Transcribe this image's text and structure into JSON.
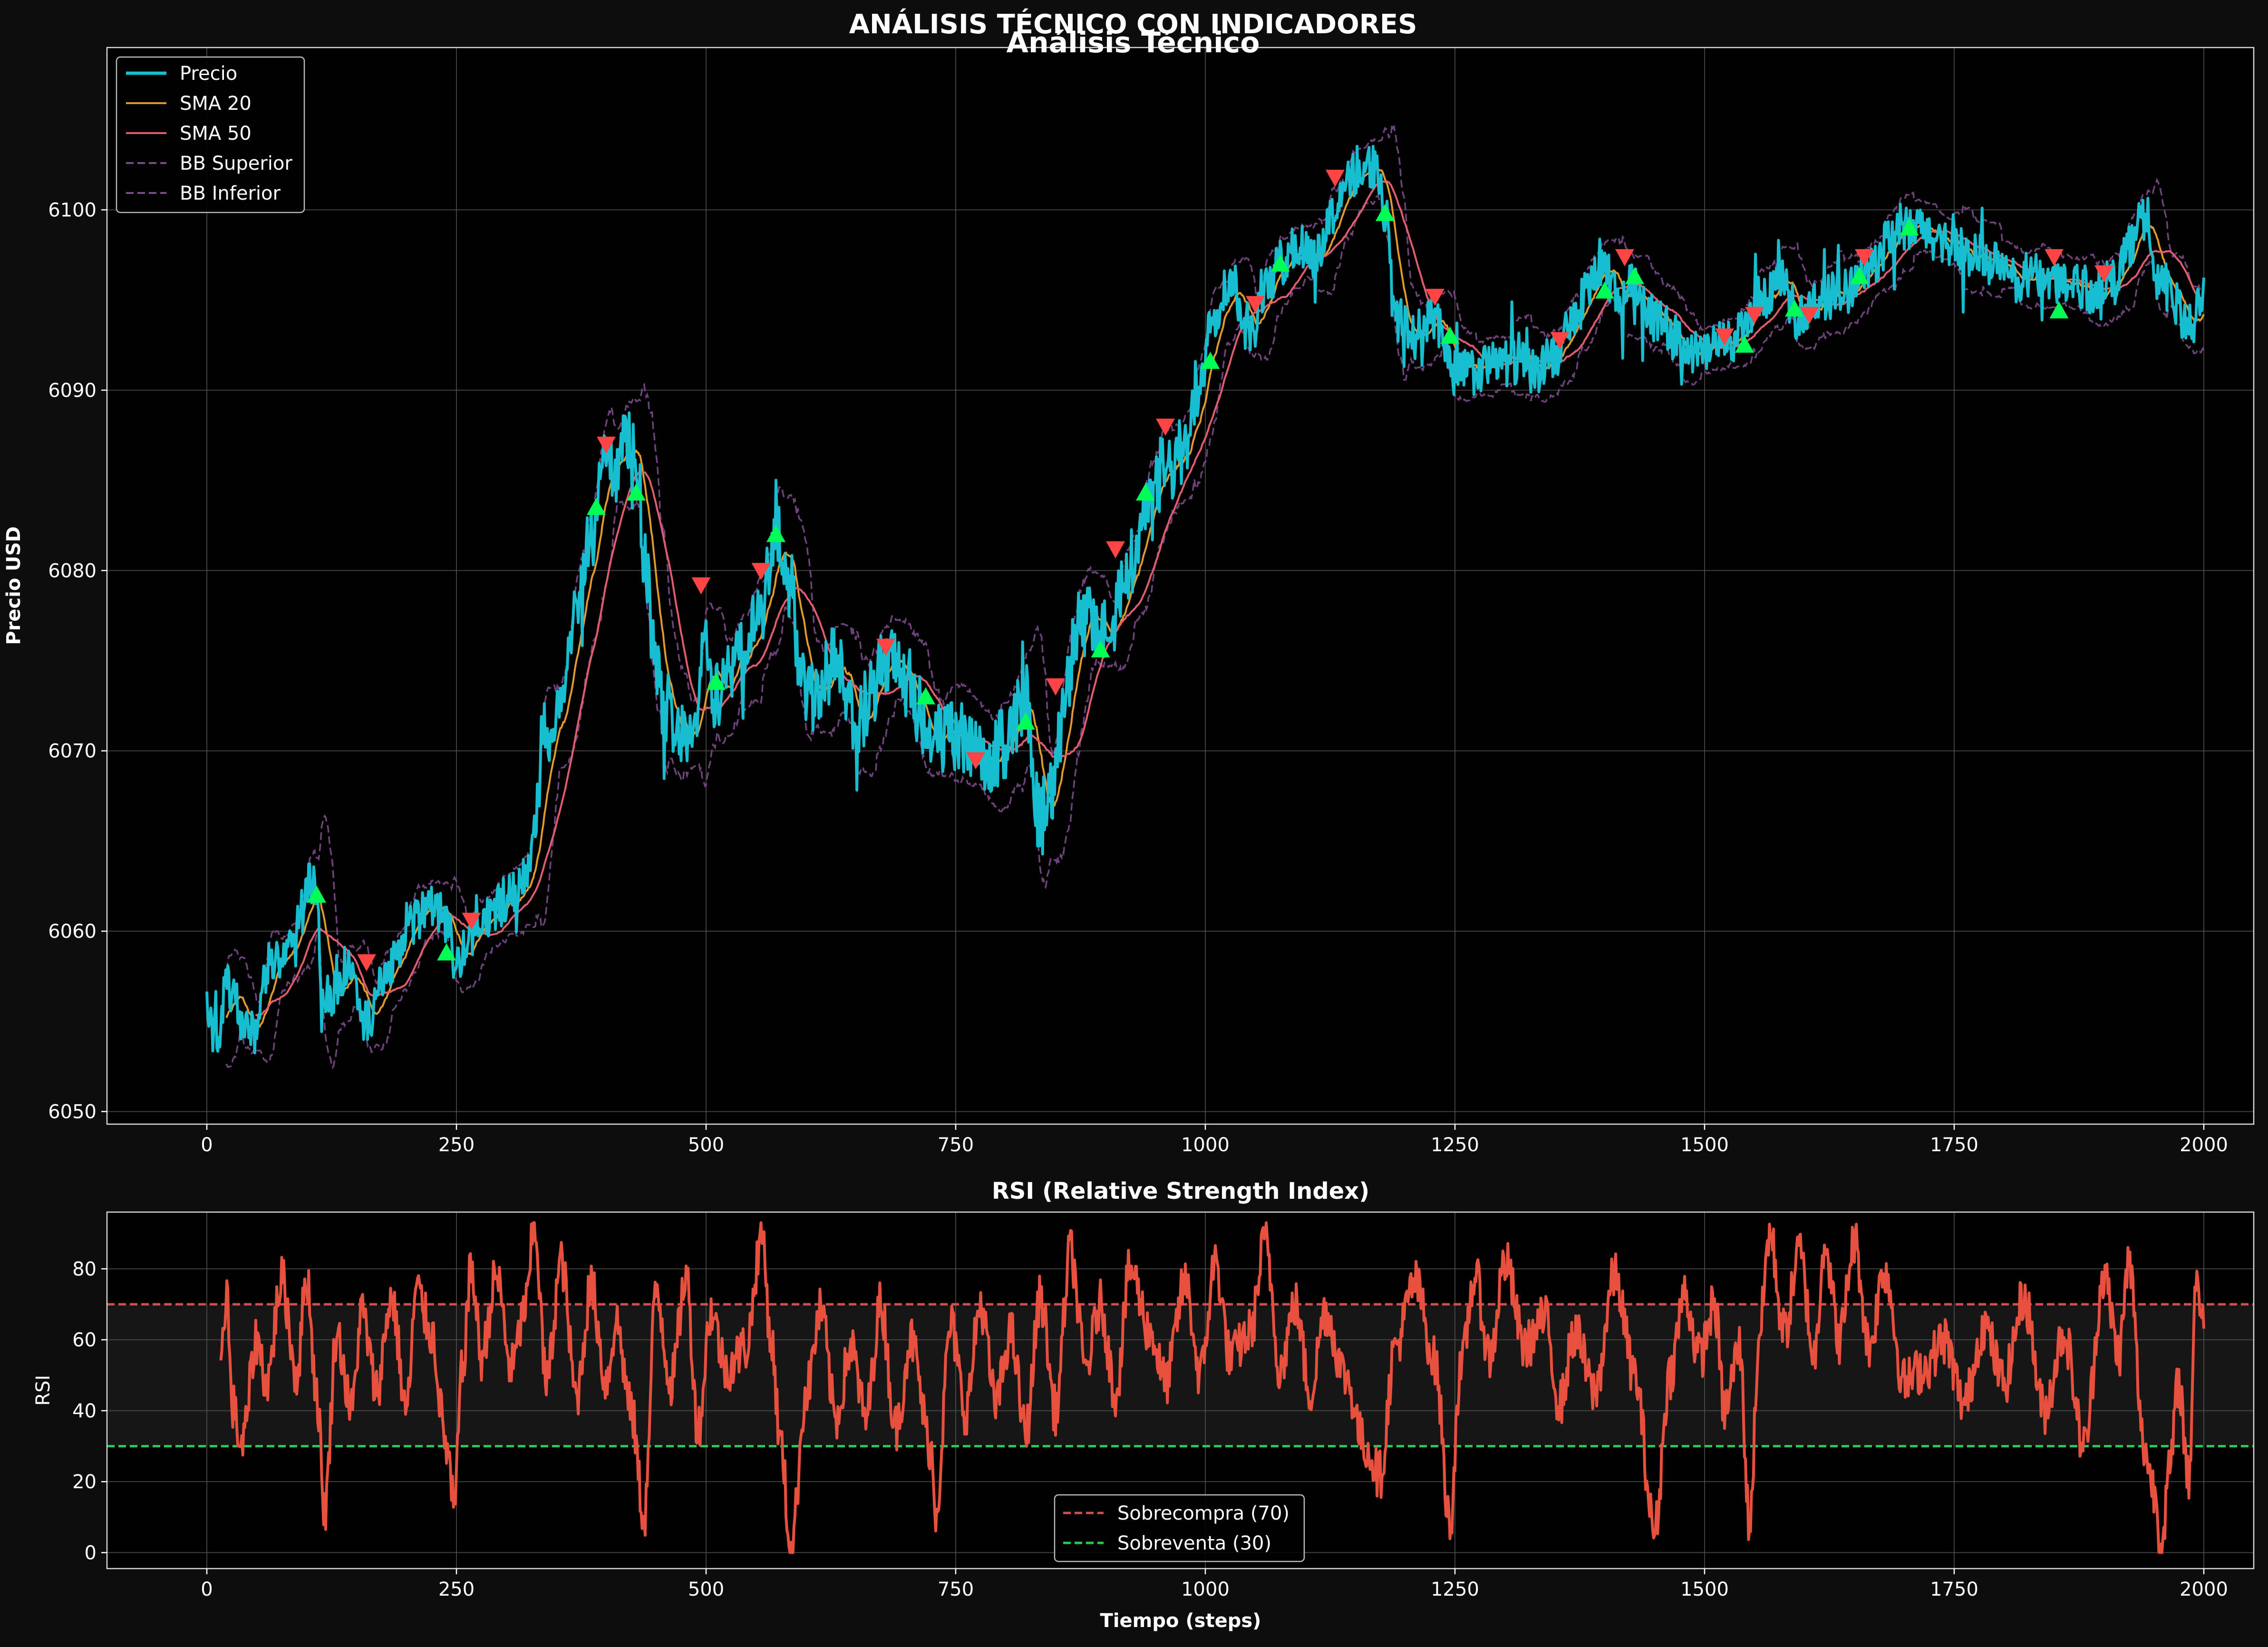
{
  "suptitle": "ANÁLISIS TÉCNICO CON INDICADORES",
  "chart_data": [
    {
      "type": "line",
      "title": "Análisis Técnico",
      "xlabel": "",
      "ylabel": "Precio USD",
      "xlim": [
        -100,
        2050
      ],
      "ylim": [
        6049.3,
        6109.0
      ],
      "xticks": [
        0,
        250,
        500,
        750,
        1000,
        1250,
        1500,
        1750,
        2000
      ],
      "xtick_labels": [
        "0",
        "250",
        "500",
        "750",
        "1000",
        "1250",
        "1500",
        "1750",
        "2000"
      ],
      "yticks": [
        6050,
        6060,
        6070,
        6080,
        6090,
        6100
      ],
      "ytick_labels": [
        "6050",
        "6060",
        "6070",
        "6080",
        "6090",
        "6100"
      ],
      "grid": true,
      "legend_position": "top-left",
      "price_anchors": [
        [
          0,
          6055.5
        ],
        [
          10,
          6054
        ],
        [
          20,
          6057
        ],
        [
          35,
          6055
        ],
        [
          50,
          6054
        ],
        [
          60,
          6058
        ],
        [
          80,
          6059
        ],
        [
          95,
          6061
        ],
        [
          103,
          6063
        ],
        [
          110,
          6062
        ],
        [
          115,
          6057
        ],
        [
          125,
          6056.5
        ],
        [
          140,
          6058
        ],
        [
          160,
          6055
        ],
        [
          180,
          6057.5
        ],
        [
          200,
          6060
        ],
        [
          225,
          6061.5
        ],
        [
          240,
          6060.5
        ],
        [
          250,
          6058
        ],
        [
          265,
          6060
        ],
        [
          285,
          6061
        ],
        [
          305,
          6062
        ],
        [
          320,
          6063
        ],
        [
          340,
          6070
        ],
        [
          355,
          6073
        ],
        [
          370,
          6078
        ],
        [
          385,
          6082
        ],
        [
          400,
          6086
        ],
        [
          410,
          6085.5
        ],
        [
          420,
          6087
        ],
        [
          430,
          6086
        ],
        [
          440,
          6080
        ],
        [
          450,
          6074
        ],
        [
          460,
          6072.5
        ],
        [
          475,
          6071
        ],
        [
          490,
          6072
        ],
        [
          500,
          6076
        ],
        [
          510,
          6073
        ],
        [
          525,
          6075
        ],
        [
          540,
          6075.5
        ],
        [
          555,
          6078
        ],
        [
          570,
          6082.5
        ],
        [
          580,
          6079
        ],
        [
          595,
          6075
        ],
        [
          610,
          6073
        ],
        [
          630,
          6075
        ],
        [
          650,
          6071.5
        ],
        [
          665,
          6073
        ],
        [
          680,
          6075
        ],
        [
          700,
          6074
        ],
        [
          720,
          6071.5
        ],
        [
          735,
          6070.5
        ],
        [
          750,
          6071
        ],
        [
          765,
          6070
        ],
        [
          780,
          6069
        ],
        [
          800,
          6070.5
        ],
        [
          820,
          6073
        ],
        [
          835,
          6066
        ],
        [
          845,
          6068
        ],
        [
          860,
          6074
        ],
        [
          875,
          6077
        ],
        [
          890,
          6077.5
        ],
        [
          905,
          6076
        ],
        [
          920,
          6080
        ],
        [
          940,
          6083
        ],
        [
          960,
          6085.5
        ],
        [
          980,
          6086.5
        ],
        [
          995,
          6091
        ],
        [
          1005,
          6094
        ],
        [
          1025,
          6096
        ],
        [
          1045,
          6093
        ],
        [
          1060,
          6095.5
        ],
        [
          1075,
          6097
        ],
        [
          1090,
          6098
        ],
        [
          1110,
          6097.5
        ],
        [
          1130,
          6100
        ],
        [
          1150,
          6102
        ],
        [
          1170,
          6102.5
        ],
        [
          1180,
          6100
        ],
        [
          1190,
          6094
        ],
        [
          1210,
          6093
        ],
        [
          1230,
          6094
        ],
        [
          1250,
          6091
        ],
        [
          1270,
          6091
        ],
        [
          1290,
          6091.5
        ],
        [
          1310,
          6091.5
        ],
        [
          1330,
          6091
        ],
        [
          1350,
          6092
        ],
        [
          1370,
          6094
        ],
        [
          1385,
          6096
        ],
        [
          1400,
          6096.5
        ],
        [
          1415,
          6095
        ],
        [
          1430,
          6096
        ],
        [
          1450,
          6094
        ],
        [
          1470,
          6093
        ],
        [
          1495,
          6092
        ],
        [
          1515,
          6092.5
        ],
        [
          1535,
          6093
        ],
        [
          1555,
          6095
        ],
        [
          1575,
          6096
        ],
        [
          1595,
          6094
        ],
        [
          1615,
          6095
        ],
        [
          1640,
          6095.5
        ],
        [
          1665,
          6097
        ],
        [
          1690,
          6098.5
        ],
        [
          1710,
          6099
        ],
        [
          1730,
          6098.5
        ],
        [
          1750,
          6098
        ],
        [
          1770,
          6097.5
        ],
        [
          1790,
          6097
        ],
        [
          1810,
          6096
        ],
        [
          1830,
          6096.5
        ],
        [
          1850,
          6096
        ],
        [
          1870,
          6096
        ],
        [
          1890,
          6095.5
        ],
        [
          1910,
          6096
        ],
        [
          1925,
          6098
        ],
        [
          1940,
          6099.5
        ],
        [
          1955,
          6096
        ],
        [
          1970,
          6095
        ],
        [
          1985,
          6093.5
        ],
        [
          2000,
          6095
        ]
      ],
      "buy_signals": [
        [
          110,
          6062
        ],
        [
          240,
          6058.8
        ],
        [
          390,
          6083.5
        ],
        [
          430,
          6084.3
        ],
        [
          510,
          6073.8
        ],
        [
          570,
          6082
        ],
        [
          720,
          6073
        ],
        [
          820,
          6071.6
        ],
        [
          895,
          6075.6
        ],
        [
          940,
          6084.3
        ],
        [
          1005,
          6091.6
        ],
        [
          1075,
          6097
        ],
        [
          1180,
          6099.8
        ],
        [
          1245,
          6093
        ],
        [
          1400,
          6095.5
        ],
        [
          1430,
          6096.3
        ],
        [
          1540,
          6092.5
        ],
        [
          1590,
          6094.5
        ],
        [
          1655,
          6096.3
        ],
        [
          1705,
          6099
        ],
        [
          1855,
          6094.4
        ]
      ],
      "sell_signals": [
        [
          160,
          6058.3
        ],
        [
          265,
          6060.6
        ],
        [
          400,
          6087
        ],
        [
          495,
          6079.2
        ],
        [
          555,
          6080
        ],
        [
          680,
          6075.8
        ],
        [
          770,
          6069.5
        ],
        [
          850,
          6073.6
        ],
        [
          910,
          6081.2
        ],
        [
          960,
          6088
        ],
        [
          1050,
          6094.8
        ],
        [
          1130,
          6101.8
        ],
        [
          1230,
          6095.2
        ],
        [
          1355,
          6092.8
        ],
        [
          1420,
          6097.4
        ],
        [
          1520,
          6093
        ],
        [
          1550,
          6094.2
        ],
        [
          1605,
          6094.2
        ],
        [
          1660,
          6097.4
        ],
        [
          1850,
          6097.4
        ],
        [
          1900,
          6096.5
        ]
      ],
      "series": [
        {
          "name": "Precio",
          "color": "#17becf",
          "style": "solid"
        },
        {
          "name": "SMA 20",
          "color": "#e09a2a",
          "style": "solid"
        },
        {
          "name": "SMA 50",
          "color": "#e05c6e",
          "style": "solid"
        },
        {
          "name": "BB Superior",
          "color": "#7a4a8a",
          "style": "dashed"
        },
        {
          "name": "BB Inferior",
          "color": "#7a4a8a",
          "style": "dashed"
        }
      ],
      "signal_colors": {
        "buy": "#00ff55",
        "sell": "#ff4444"
      }
    },
    {
      "type": "line",
      "title": "RSI (Relative Strength Index)",
      "xlabel": "Tiempo (steps)",
      "ylabel": "RSI",
      "xlim": [
        -100,
        2050
      ],
      "ylim": [
        -4.5,
        96
      ],
      "xticks": [
        0,
        250,
        500,
        750,
        1000,
        1250,
        1500,
        1750,
        2000
      ],
      "xtick_labels": [
        "0",
        "250",
        "500",
        "750",
        "1000",
        "1250",
        "1500",
        "1750",
        "2000"
      ],
      "yticks": [
        0,
        20,
        40,
        60,
        80
      ],
      "ytick_labels": [
        "0",
        "20",
        "40",
        "60",
        "80"
      ],
      "grid": true,
      "legend_position": "bottom-center",
      "rsi_anchors": [
        [
          14,
          58
        ],
        [
          20,
          74
        ],
        [
          25,
          42
        ],
        [
          35,
          30
        ],
        [
          50,
          60
        ],
        [
          60,
          48
        ],
        [
          75,
          77
        ],
        [
          90,
          50
        ],
        [
          100,
          78
        ],
        [
          110,
          45
        ],
        [
          118,
          12
        ],
        [
          130,
          62
        ],
        [
          145,
          40
        ],
        [
          155,
          68
        ],
        [
          170,
          46
        ],
        [
          185,
          72
        ],
        [
          200,
          40
        ],
        [
          210,
          74
        ],
        [
          225,
          62
        ],
        [
          240,
          30
        ],
        [
          248,
          12
        ],
        [
          255,
          50
        ],
        [
          265,
          80
        ],
        [
          275,
          55
        ],
        [
          290,
          78
        ],
        [
          305,
          52
        ],
        [
          320,
          70
        ],
        [
          328,
          93
        ],
        [
          340,
          48
        ],
        [
          355,
          82
        ],
        [
          370,
          44
        ],
        [
          385,
          75
        ],
        [
          400,
          48
        ],
        [
          410,
          65
        ],
        [
          425,
          40
        ],
        [
          438,
          10
        ],
        [
          450,
          74
        ],
        [
          465,
          48
        ],
        [
          480,
          78
        ],
        [
          492,
          35
        ],
        [
          505,
          68
        ],
        [
          520,
          52
        ],
        [
          540,
          58
        ],
        [
          556,
          90
        ],
        [
          565,
          60
        ],
        [
          575,
          30
        ],
        [
          585,
          0
        ],
        [
          600,
          45
        ],
        [
          615,
          68
        ],
        [
          630,
          38
        ],
        [
          645,
          58
        ],
        [
          660,
          38
        ],
        [
          675,
          70
        ],
        [
          690,
          35
        ],
        [
          705,
          60
        ],
        [
          725,
          30
        ],
        [
          730,
          12
        ],
        [
          745,
          64
        ],
        [
          760,
          40
        ],
        [
          775,
          70
        ],
        [
          790,
          42
        ],
        [
          805,
          62
        ],
        [
          820,
          34
        ],
        [
          835,
          72
        ],
        [
          850,
          40
        ],
        [
          865,
          85
        ],
        [
          880,
          52
        ],
        [
          895,
          70
        ],
        [
          910,
          45
        ],
        [
          925,
          80
        ],
        [
          945,
          62
        ],
        [
          960,
          48
        ],
        [
          980,
          76
        ],
        [
          995,
          50
        ],
        [
          1010,
          82
        ],
        [
          1025,
          55
        ],
        [
          1045,
          62
        ],
        [
          1060,
          88
        ],
        [
          1075,
          52
        ],
        [
          1090,
          70
        ],
        [
          1105,
          45
        ],
        [
          1120,
          68
        ],
        [
          1140,
          50
        ],
        [
          1160,
          30
        ],
        [
          1175,
          22
        ],
        [
          1190,
          58
        ],
        [
          1210,
          76
        ],
        [
          1230,
          54
        ],
        [
          1245,
          8
        ],
        [
          1255,
          50
        ],
        [
          1270,
          78
        ],
        [
          1285,
          55
        ],
        [
          1300,
          82
        ],
        [
          1320,
          58
        ],
        [
          1340,
          66
        ],
        [
          1355,
          42
        ],
        [
          1370,
          62
        ],
        [
          1390,
          45
        ],
        [
          1410,
          78
        ],
        [
          1430,
          50
        ],
        [
          1450,
          6
        ],
        [
          1465,
          50
        ],
        [
          1480,
          73
        ],
        [
          1495,
          55
        ],
        [
          1510,
          70
        ],
        [
          1520,
          40
        ],
        [
          1535,
          58
        ],
        [
          1545,
          8
        ],
        [
          1555,
          62
        ],
        [
          1565,
          90
        ],
        [
          1580,
          62
        ],
        [
          1595,
          85
        ],
        [
          1610,
          55
        ],
        [
          1620,
          88
        ],
        [
          1635,
          60
        ],
        [
          1650,
          88
        ],
        [
          1665,
          58
        ],
        [
          1680,
          80
        ],
        [
          1700,
          48
        ],
        [
          1720,
          52
        ],
        [
          1740,
          60
        ],
        [
          1760,
          42
        ],
        [
          1780,
          64
        ],
        [
          1800,
          48
        ],
        [
          1820,
          72
        ],
        [
          1840,
          40
        ],
        [
          1860,
          62
        ],
        [
          1880,
          30
        ],
        [
          1900,
          78
        ],
        [
          1915,
          56
        ],
        [
          1925,
          82
        ],
        [
          1940,
          30
        ],
        [
          1950,
          18
        ],
        [
          1958,
          2
        ],
        [
          1965,
          22
        ],
        [
          1975,
          48
        ],
        [
          1985,
          20
        ],
        [
          1992,
          77
        ],
        [
          2000,
          66
        ]
      ],
      "reference_lines": [
        {
          "name": "Sobrecompra (70)",
          "value": 70,
          "color": "#d05050"
        },
        {
          "name": "Sobreventa (30)",
          "value": 30,
          "color": "#22cc55"
        }
      ],
      "rsi_color": "#e8503e"
    }
  ]
}
